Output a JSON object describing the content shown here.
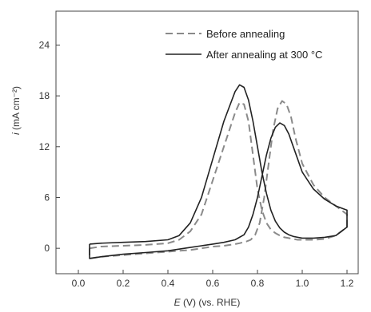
{
  "chart_data": {
    "type": "line",
    "xlabel": "E (V) (vs. RHE)",
    "xlabel_var": "E",
    "xlabel_rest": " (V) (vs. RHE)",
    "ylabel": "i (mA cm⁻²)",
    "ylabel_var": "i",
    "ylabel_rest": " (mA cm⁻²)",
    "xlim": [
      -0.1,
      1.25
    ],
    "ylim": [
      -3,
      28
    ],
    "xticks": [
      0.0,
      0.2,
      0.4,
      0.6,
      0.8,
      1.0,
      1.2
    ],
    "xtick_labels": [
      "0.0",
      "0.2",
      "0.4",
      "0.6",
      "0.8",
      "1.0",
      "1.2"
    ],
    "yticks": [
      0,
      6,
      12,
      18,
      24
    ],
    "ytick_labels": [
      "0",
      "6",
      "12",
      "18",
      "24"
    ],
    "legend_placement": "top-right",
    "series": [
      {
        "name": "Before annealing",
        "style": "dashed",
        "color": "#8a8a8a",
        "x": [
          0.05,
          0.1,
          0.2,
          0.3,
          0.4,
          0.45,
          0.5,
          0.55,
          0.6,
          0.65,
          0.7,
          0.72,
          0.74,
          0.76,
          0.78,
          0.8,
          0.82,
          0.84,
          0.86,
          0.88,
          0.9,
          0.92,
          0.94,
          0.96,
          0.98,
          1.0,
          1.05,
          1.1,
          1.15,
          1.2,
          1.2,
          1.15,
          1.1,
          1.05,
          1.0,
          0.97,
          0.95,
          0.93,
          0.91,
          0.89,
          0.87,
          0.85,
          0.83,
          0.81,
          0.79,
          0.77,
          0.75,
          0.72,
          0.7,
          0.65,
          0.6,
          0.55,
          0.5,
          0.45,
          0.4,
          0.35,
          0.3,
          0.2,
          0.1,
          0.05,
          0.05
        ],
        "y": [
          0.0,
          0.2,
          0.3,
          0.4,
          0.6,
          1.0,
          2.0,
          4.0,
          8.0,
          12.0,
          16.0,
          17.2,
          17.0,
          15.0,
          11.0,
          7.0,
          4.5,
          3.0,
          2.2,
          1.8,
          1.5,
          1.3,
          1.2,
          1.1,
          1.0,
          1.0,
          1.0,
          1.1,
          1.5,
          2.5,
          4.0,
          5.0,
          6.0,
          7.5,
          10.0,
          13.0,
          15.5,
          17.0,
          17.4,
          16.5,
          14.0,
          10.0,
          6.0,
          3.0,
          1.6,
          1.0,
          0.8,
          0.6,
          0.5,
          0.3,
          0.2,
          0.0,
          -0.2,
          -0.3,
          -0.4,
          -0.5,
          -0.6,
          -0.8,
          -1.0,
          -1.2,
          0.0
        ]
      },
      {
        "name": "After annealing at 300 °C",
        "style": "solid",
        "color": "#222222",
        "x": [
          0.05,
          0.1,
          0.2,
          0.3,
          0.4,
          0.45,
          0.5,
          0.55,
          0.6,
          0.65,
          0.7,
          0.72,
          0.74,
          0.76,
          0.78,
          0.8,
          0.82,
          0.84,
          0.86,
          0.88,
          0.9,
          0.92,
          0.94,
          0.96,
          0.98,
          1.0,
          1.05,
          1.1,
          1.15,
          1.2,
          1.2,
          1.15,
          1.1,
          1.05,
          1.0,
          0.98,
          0.96,
          0.94,
          0.92,
          0.9,
          0.88,
          0.86,
          0.84,
          0.82,
          0.8,
          0.78,
          0.76,
          0.74,
          0.7,
          0.65,
          0.6,
          0.55,
          0.5,
          0.45,
          0.4,
          0.3,
          0.2,
          0.1,
          0.05,
          0.05
        ],
        "y": [
          0.5,
          0.6,
          0.7,
          0.8,
          1.0,
          1.5,
          3.0,
          6.0,
          10.5,
          15.0,
          18.5,
          19.3,
          19.0,
          17.5,
          15.0,
          12.0,
          9.0,
          6.5,
          4.5,
          3.2,
          2.4,
          1.9,
          1.6,
          1.4,
          1.3,
          1.2,
          1.2,
          1.3,
          1.5,
          2.5,
          4.5,
          5.0,
          5.8,
          7.0,
          9.0,
          10.5,
          12.0,
          13.5,
          14.5,
          14.8,
          14.3,
          13.0,
          11.0,
          8.5,
          6.0,
          4.0,
          2.5,
          1.6,
          1.0,
          0.7,
          0.5,
          0.3,
          0.1,
          -0.1,
          -0.3,
          -0.5,
          -0.7,
          -1.0,
          -1.2,
          0.5
        ]
      }
    ]
  }
}
